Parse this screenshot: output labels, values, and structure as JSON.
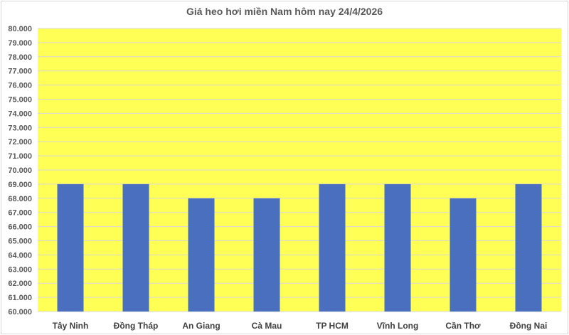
{
  "chart_data": {
    "type": "bar",
    "title": "Giá heo hơi miền Nam hôm nay 24/4/2026",
    "categories": [
      "Tây Ninh",
      "Đồng Tháp",
      "An Giang",
      "Cà Mau",
      "TP HCM",
      "Vĩnh Long",
      "Cần Thơ",
      "Đồng Nai"
    ],
    "values": [
      69000,
      69000,
      68000,
      68000,
      69000,
      69000,
      68000,
      69000
    ],
    "ylim": [
      60000,
      80000
    ],
    "ytick_step": 1000,
    "yticks": [
      "60.000",
      "61.000",
      "62.000",
      "63.000",
      "64.000",
      "65.000",
      "66.000",
      "67.000",
      "68.000",
      "69.000",
      "70.000",
      "71.000",
      "72.000",
      "73.000",
      "74.000",
      "75.000",
      "76.000",
      "77.000",
      "78.000",
      "79.000",
      "80.000"
    ],
    "grid": true,
    "legend": "none",
    "colors": {
      "bar": "#4a6fbe",
      "plot_background": "#ffff55",
      "grid": "#d9d9d9"
    }
  }
}
